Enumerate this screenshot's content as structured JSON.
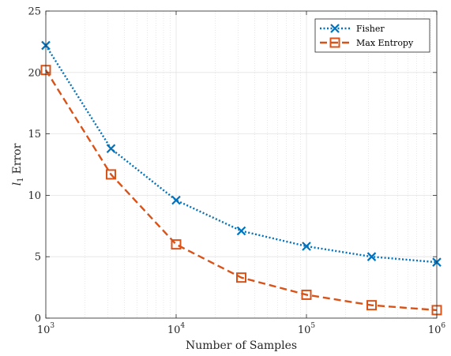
{
  "chart_data": {
    "type": "line",
    "x_scale": "log",
    "x": [
      1000,
      3162,
      10000,
      31623,
      100000,
      316228,
      1000000
    ],
    "xlim": [
      1000,
      1000000
    ],
    "x_ticks": [
      {
        "value": 1000,
        "base": "10",
        "exp": "3"
      },
      {
        "value": 10000,
        "base": "10",
        "exp": "4"
      },
      {
        "value": 100000,
        "base": "10",
        "exp": "5"
      },
      {
        "value": 1000000,
        "base": "10",
        "exp": "6"
      }
    ],
    "ylim": [
      0,
      25
    ],
    "y_ticks": [
      0,
      5,
      10,
      15,
      20,
      25
    ],
    "xlabel": "Number of Samples",
    "ylabel_symbol": "l",
    "ylabel_sub": "1",
    "ylabel_text": "Error",
    "grid": true,
    "legend_position": "top-right",
    "series": [
      {
        "name": "Fisher",
        "values": [
          22.2,
          13.8,
          9.6,
          7.1,
          5.85,
          5.0,
          4.55
        ],
        "color": "#0072BD",
        "marker": "x",
        "line_style": "dotted"
      },
      {
        "name": "Max Entropy",
        "values": [
          20.2,
          11.7,
          6.0,
          3.3,
          1.9,
          1.05,
          0.65
        ],
        "color": "#D95319",
        "marker": "square",
        "line_style": "dashed"
      }
    ]
  }
}
